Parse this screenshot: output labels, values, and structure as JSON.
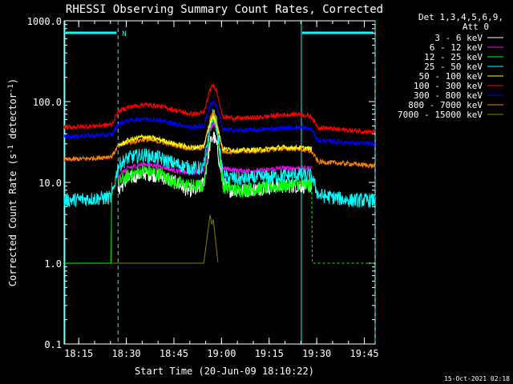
{
  "chart_data": {
    "type": "line",
    "title": "RHESSI Observing Summary Count Rates, Corrected",
    "xlabel": "Start Time (20-Jun-09 18:10:22)",
    "ylabel_main": "Corrected Count Rate (s",
    "ylabel_sup1": "-1",
    "ylabel_mid": " detector",
    "ylabel_sup2": "-1",
    "ylabel_end": ")",
    "y_scale": "log",
    "ylim": [
      0.1,
      1000
    ],
    "xlim_minutes": [
      0,
      98
    ],
    "x_tick_labels": [
      {
        "label": "18:15",
        "minute": 4.6
      },
      {
        "label": "18:30",
        "minute": 19.6
      },
      {
        "label": "18:45",
        "minute": 34.6
      },
      {
        "label": "19:00",
        "minute": 49.6
      },
      {
        "label": "19:15",
        "minute": 64.6
      },
      {
        "label": "19:30",
        "minute": 79.6
      },
      {
        "label": "19:45",
        "minute": 94.6
      }
    ],
    "y_tick_labels": [
      {
        "label": "0.1",
        "value": 0.1
      },
      {
        "label": "1.0",
        "value": 1
      },
      {
        "label": "10.0",
        "value": 10
      },
      {
        "label": "100.0",
        "value": 100
      },
      {
        "label": "1000.0",
        "value": 1000
      }
    ],
    "legend_title": "Det 1,3,4,5,6,9,",
    "legend_subtitle": "Att 0",
    "legend_position": "right",
    "night_marker": "N",
    "eclipse_intervals_minutes": [
      [
        0,
        17
      ],
      [
        74.5,
        98
      ]
    ],
    "series": [
      {
        "name": "3 - 6 keV",
        "color": "#ffffff",
        "points": [
          [
            17,
            8
          ],
          [
            20,
            11
          ],
          [
            25,
            13
          ],
          [
            30,
            12
          ],
          [
            35,
            10
          ],
          [
            39,
            8
          ],
          [
            42,
            8
          ],
          [
            44,
            10
          ],
          [
            46,
            30
          ],
          [
            47,
            38
          ],
          [
            48,
            30
          ],
          [
            50,
            10
          ],
          [
            52,
            8
          ],
          [
            58,
            8
          ],
          [
            62,
            8.5
          ],
          [
            68,
            9
          ],
          [
            72,
            9
          ],
          [
            76,
            9
          ],
          [
            78,
            9
          ]
        ]
      },
      {
        "name": "6 - 12 keV",
        "color": "#ff00ff",
        "points": [
          [
            17,
            12
          ],
          [
            20,
            15
          ],
          [
            25,
            17
          ],
          [
            30,
            16
          ],
          [
            35,
            14
          ],
          [
            40,
            13
          ],
          [
            44,
            14
          ],
          [
            46,
            45
          ],
          [
            47,
            55
          ],
          [
            48,
            45
          ],
          [
            50,
            15
          ],
          [
            55,
            14
          ],
          [
            62,
            14
          ],
          [
            68,
            15
          ],
          [
            74,
            15
          ],
          [
            78,
            15
          ]
        ]
      },
      {
        "name": "12 - 25 keV",
        "color": "#00ff00",
        "points": [
          [
            17,
            10
          ],
          [
            20,
            12
          ],
          [
            25,
            14
          ],
          [
            30,
            13
          ],
          [
            35,
            10
          ],
          [
            40,
            9
          ],
          [
            44,
            9
          ],
          [
            46,
            50
          ],
          [
            47,
            62
          ],
          [
            48,
            50
          ],
          [
            50,
            9
          ],
          [
            55,
            8
          ],
          [
            62,
            8.5
          ],
          [
            68,
            9
          ],
          [
            74,
            9.5
          ],
          [
            78,
            9.5
          ]
        ]
      },
      {
        "name": "25 - 50 keV",
        "color": "#00ffff",
        "points": [
          [
            0,
            6
          ],
          [
            15,
            6.5
          ],
          [
            17,
            16
          ],
          [
            20,
            20
          ],
          [
            25,
            22
          ],
          [
            30,
            20
          ],
          [
            35,
            17
          ],
          [
            40,
            15
          ],
          [
            44,
            15
          ],
          [
            46,
            55
          ],
          [
            47,
            70
          ],
          [
            48,
            55
          ],
          [
            50,
            12
          ],
          [
            55,
            11
          ],
          [
            62,
            11.5
          ],
          [
            68,
            12
          ],
          [
            74,
            12.5
          ],
          [
            78,
            12
          ],
          [
            80,
            7
          ],
          [
            90,
            6
          ],
          [
            98,
            6
          ]
        ]
      },
      {
        "name": "50 - 100 keV",
        "color": "#ffff00",
        "points": [
          [
            17,
            28
          ],
          [
            20,
            33
          ],
          [
            25,
            37
          ],
          [
            30,
            34
          ],
          [
            35,
            30
          ],
          [
            40,
            27
          ],
          [
            44,
            28
          ],
          [
            46,
            55
          ],
          [
            47,
            65
          ],
          [
            48,
            55
          ],
          [
            50,
            26
          ],
          [
            55,
            25
          ],
          [
            62,
            25.5
          ],
          [
            68,
            27
          ],
          [
            74,
            27
          ],
          [
            78,
            26
          ]
        ]
      },
      {
        "name": "100 - 300 keV",
        "color": "#ff0000",
        "points": [
          [
            0,
            48
          ],
          [
            10,
            50
          ],
          [
            15,
            52
          ],
          [
            17,
            75
          ],
          [
            20,
            85
          ],
          [
            25,
            92
          ],
          [
            30,
            88
          ],
          [
            35,
            78
          ],
          [
            40,
            70
          ],
          [
            44,
            72
          ],
          [
            46,
            140
          ],
          [
            47,
            160
          ],
          [
            48,
            140
          ],
          [
            50,
            65
          ],
          [
            55,
            62
          ],
          [
            62,
            64
          ],
          [
            68,
            68
          ],
          [
            74,
            70
          ],
          [
            78,
            65
          ],
          [
            80,
            48
          ],
          [
            90,
            44
          ],
          [
            98,
            42
          ]
        ]
      },
      {
        "name": "300 - 800 keV",
        "color": "#0000ff",
        "points": [
          [
            0,
            37
          ],
          [
            10,
            38
          ],
          [
            15,
            39
          ],
          [
            17,
            52
          ],
          [
            20,
            58
          ],
          [
            25,
            62
          ],
          [
            30,
            59
          ],
          [
            35,
            53
          ],
          [
            40,
            48
          ],
          [
            44,
            50
          ],
          [
            46,
            90
          ],
          [
            47,
            100
          ],
          [
            48,
            90
          ],
          [
            50,
            45
          ],
          [
            55,
            44
          ],
          [
            62,
            45
          ],
          [
            68,
            47
          ],
          [
            74,
            48
          ],
          [
            78,
            45
          ],
          [
            80,
            33
          ],
          [
            90,
            31
          ],
          [
            98,
            30
          ]
        ]
      },
      {
        "name": "800 - 7000 keV",
        "color": "#ff8000",
        "points": [
          [
            0,
            19
          ],
          [
            10,
            20
          ],
          [
            15,
            21
          ],
          [
            17,
            28
          ],
          [
            20,
            31
          ],
          [
            25,
            34
          ],
          [
            30,
            32
          ],
          [
            35,
            29
          ],
          [
            40,
            26
          ],
          [
            44,
            27
          ],
          [
            46,
            60
          ],
          [
            47,
            75
          ],
          [
            48,
            60
          ],
          [
            50,
            24
          ],
          [
            55,
            24
          ],
          [
            62,
            24.5
          ],
          [
            68,
            26
          ],
          [
            74,
            26
          ],
          [
            78,
            24
          ],
          [
            80,
            18
          ],
          [
            90,
            17
          ],
          [
            98,
            16
          ]
        ]
      },
      {
        "name": "7000 - 15000 keV",
        "color": "#808000",
        "points": [
          [
            0,
            1
          ],
          [
            14,
            1
          ],
          [
            15,
            1
          ],
          [
            17,
            1
          ],
          [
            28,
            1
          ],
          [
            30,
            1
          ],
          [
            33,
            1
          ],
          [
            43,
            1
          ],
          [
            44,
            1
          ],
          [
            45,
            2
          ],
          [
            46,
            4
          ],
          [
            46.5,
            3
          ],
          [
            47,
            3.5
          ],
          [
            48,
            1.5
          ],
          [
            48.5,
            1
          ]
        ]
      }
    ],
    "green_side_segments": [
      {
        "points": [
          [
            0,
            1
          ],
          [
            14.8,
            1
          ],
          [
            15,
            10
          ]
        ]
      },
      {
        "points": [
          [
            78,
            10
          ],
          [
            78.2,
            1
          ],
          [
            98,
            1
          ]
        ]
      }
    ],
    "footer_date": "15-Oct-2021 02:18"
  }
}
